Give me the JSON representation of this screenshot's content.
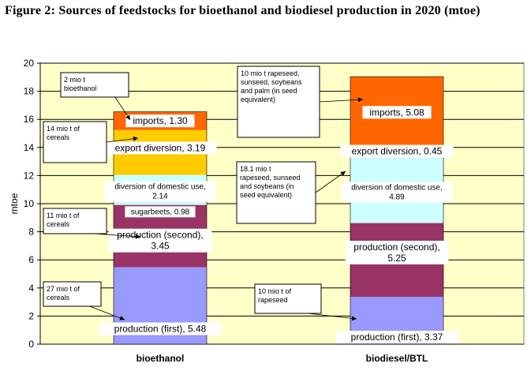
{
  "title": "Figure 2: Sources of feedstocks for bioethanol and biodiesel production in 2020 (mtoe)",
  "colors": {
    "plot_bg": "#FFFFC8",
    "production_first": "#9999FF",
    "production_second": "#993366",
    "sugarbeets": "#993366",
    "diversion_domestic": "#CCFFFF",
    "export_diversion": "#FFCC00",
    "imports": "#FF6600"
  },
  "chart_data": {
    "type": "bar",
    "stacked": true,
    "ylabel": "mtoe",
    "ylim": [
      0,
      20
    ],
    "yticks": [
      0,
      2,
      4,
      6,
      8,
      10,
      12,
      14,
      16,
      18,
      20
    ],
    "grid": true,
    "categories": [
      "bioethanol",
      "biodiesel/BTL"
    ],
    "series": [
      {
        "name": "production (first)",
        "values": [
          5.48,
          3.37
        ]
      },
      {
        "name": "production (second)",
        "values": [
          3.45,
          5.25
        ]
      },
      {
        "name": "sugarbeets",
        "values": [
          0.98,
          0
        ]
      },
      {
        "name": "diversion of domestic use",
        "values": [
          2.14,
          4.89
        ]
      },
      {
        "name": "export diversion",
        "values": [
          3.19,
          0.45
        ]
      },
      {
        "name": "imports",
        "values": [
          1.3,
          5.08
        ]
      }
    ],
    "segment_labels": [
      [
        "production (first), 5.48",
        "production (first), 3.37"
      ],
      [
        "production (second), 3.45",
        "production (second), 5.25"
      ],
      [
        "sugarbeets, 0.98",
        ""
      ],
      [
        "diversion of domestic use, 2.14",
        "diversion of domestic use, 4.89"
      ],
      [
        "export diversion, 3.19",
        "export diversion, 0.45"
      ],
      [
        "imports, 1.30",
        "imports, 5.08"
      ]
    ],
    "annotations": [
      {
        "lines": [
          "2 mio t",
          "bioethanol"
        ]
      },
      {
        "lines": [
          "14 mio t of",
          "cereals"
        ]
      },
      {
        "lines": [
          "11 mio t of",
          "cereals"
        ]
      },
      {
        "lines": [
          "27 mio t of",
          "cereals"
        ]
      },
      {
        "lines": [
          "10 mio t rapeseed,",
          "sunseed, soybeans",
          "and palm (in seed",
          "equivalent)"
        ]
      },
      {
        "lines": [
          "18.1 mio t",
          "rapeseed, sunseed",
          "and soybeans (in",
          "seed equivalent)"
        ]
      },
      {
        "lines": [
          "10 mio t of",
          "rapeseed"
        ]
      }
    ]
  }
}
